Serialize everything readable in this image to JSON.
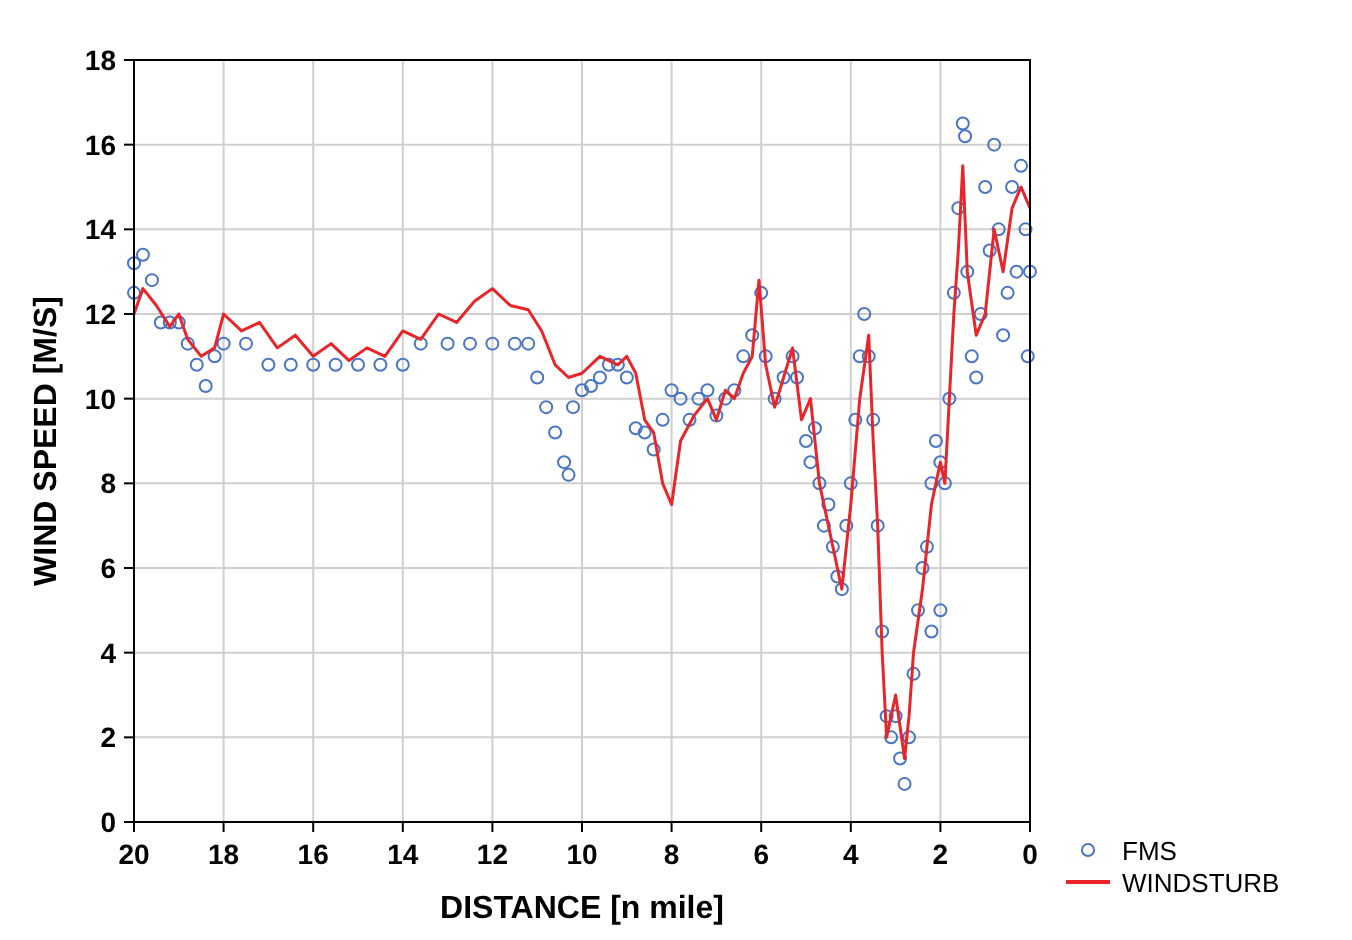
{
  "chart_data": {
    "type": "scatter",
    "xlabel": "DISTANCE [n mile]",
    "ylabel": "WIND SPEED [M/S]",
    "xlim": [
      20,
      0
    ],
    "xticks": [
      20,
      18,
      16,
      14,
      12,
      10,
      8,
      6,
      4,
      2,
      0
    ],
    "ylim": [
      0,
      18
    ],
    "yticks": [
      0,
      2,
      4,
      6,
      8,
      10,
      12,
      14,
      16,
      18
    ],
    "grid": true,
    "legend": "bottom right",
    "series": [
      {
        "name": "FMS",
        "marker": "circle",
        "color": "#4a74c4",
        "x": [
          20,
          20,
          19.8,
          19.6,
          19.4,
          19.2,
          19,
          18.8,
          18.6,
          18.4,
          18.2,
          18,
          17.5,
          17,
          16.5,
          16,
          15.5,
          15,
          14.5,
          14,
          13.6,
          13,
          12.5,
          12,
          11.5,
          11.2,
          11,
          10.8,
          10.6,
          10.4,
          10.3,
          10.2,
          10,
          9.8,
          9.6,
          9.4,
          9.2,
          9,
          8.8,
          8.6,
          8.4,
          8.2,
          8,
          7.8,
          7.6,
          7.4,
          7.2,
          7,
          6.8,
          6.6,
          6.4,
          6.2,
          6,
          5.9,
          5.7,
          5.5,
          5.3,
          5.2,
          5,
          4.9,
          4.8,
          4.7,
          4.6,
          4.5,
          4.4,
          4.3,
          4.2,
          4.1,
          4,
          3.9,
          3.8,
          3.7,
          3.6,
          3.5,
          3.4,
          3.3,
          3.2,
          3.1,
          3,
          2.9,
          2.8,
          2.7,
          2.6,
          2.5,
          2.4,
          2.3,
          2.2,
          2.2,
          2.1,
          2,
          2,
          1.9,
          1.8,
          1.7,
          1.6,
          1.5,
          1.45,
          1.4,
          1.3,
          1.2,
          1.1,
          1,
          0.9,
          0.8,
          0.7,
          0.6,
          0.5,
          0.4,
          0.3,
          0.2,
          0.1,
          0.05,
          0
        ],
        "values": [
          12.5,
          13.2,
          13.4,
          12.8,
          11.8,
          11.8,
          11.8,
          11.3,
          10.8,
          10.3,
          11,
          11.3,
          11.3,
          10.8,
          10.8,
          10.8,
          10.8,
          10.8,
          10.8,
          10.8,
          11.3,
          11.3,
          11.3,
          11.3,
          11.3,
          11.3,
          10.5,
          9.8,
          9.2,
          8.5,
          8.2,
          9.8,
          10.2,
          10.3,
          10.5,
          10.8,
          10.8,
          10.5,
          9.3,
          9.2,
          8.8,
          9.5,
          10.2,
          10,
          9.5,
          10,
          10.2,
          9.6,
          10,
          10.2,
          11,
          11.5,
          12.5,
          11,
          10,
          10.5,
          11,
          10.5,
          9,
          8.5,
          9.3,
          8,
          7,
          7.5,
          6.5,
          5.8,
          5.5,
          7,
          8,
          9.5,
          11,
          12,
          11,
          9.5,
          7,
          4.5,
          2.5,
          2,
          2.5,
          1.5,
          0.9,
          2,
          3.5,
          5,
          6,
          6.5,
          8,
          4.5,
          9,
          8.5,
          5,
          8,
          10,
          12.5,
          14.5,
          16.5,
          16.2,
          13,
          11,
          10.5,
          12,
          15,
          13.5,
          16,
          14,
          11.5,
          12.5,
          15,
          13,
          15.5,
          14,
          11,
          13
        ]
      },
      {
        "name": "WINDSTURB",
        "type": "line",
        "color": "#e8262a",
        "x": [
          20,
          19.8,
          19.5,
          19.2,
          19,
          18.8,
          18.5,
          18.2,
          18,
          17.6,
          17.2,
          16.8,
          16.4,
          16,
          15.6,
          15.2,
          14.8,
          14.4,
          14,
          13.6,
          13.2,
          12.8,
          12.4,
          12,
          11.6,
          11.2,
          10.9,
          10.6,
          10.3,
          10,
          9.6,
          9.2,
          9,
          8.8,
          8.6,
          8.4,
          8.2,
          8,
          7.8,
          7.5,
          7.2,
          7,
          6.8,
          6.6,
          6.4,
          6.2,
          6.05,
          5.9,
          5.7,
          5.5,
          5.3,
          5.1,
          4.9,
          4.7,
          4.5,
          4.3,
          4.2,
          4,
          3.8,
          3.6,
          3.5,
          3.4,
          3.3,
          3.2,
          3,
          2.8,
          2.7,
          2.6,
          2.4,
          2.2,
          2,
          1.9,
          1.8,
          1.7,
          1.6,
          1.5,
          1.4,
          1.2,
          1,
          0.8,
          0.6,
          0.4,
          0.2,
          0
        ],
        "values": [
          12,
          12.6,
          12.2,
          11.7,
          12,
          11.4,
          11,
          11.2,
          12,
          11.6,
          11.8,
          11.2,
          11.5,
          11,
          11.3,
          10.9,
          11.2,
          11,
          11.6,
          11.4,
          12,
          11.8,
          12.3,
          12.6,
          12.2,
          12.1,
          11.6,
          10.8,
          10.5,
          10.6,
          11,
          10.8,
          11,
          10.6,
          9.5,
          9.2,
          8,
          7.5,
          9,
          9.6,
          10,
          9.5,
          10.2,
          10,
          10.6,
          11,
          12.8,
          10.8,
          9.8,
          10.5,
          11.2,
          9.5,
          10,
          8,
          7,
          6,
          5.5,
          7.5,
          10,
          11.5,
          9,
          7,
          4,
          2,
          3,
          1.5,
          2.5,
          4,
          5.5,
          7.5,
          8.5,
          8,
          10,
          12,
          13.5,
          15.5,
          13,
          11.5,
          12,
          14,
          13,
          14.5,
          15,
          14.5
        ]
      }
    ]
  }
}
